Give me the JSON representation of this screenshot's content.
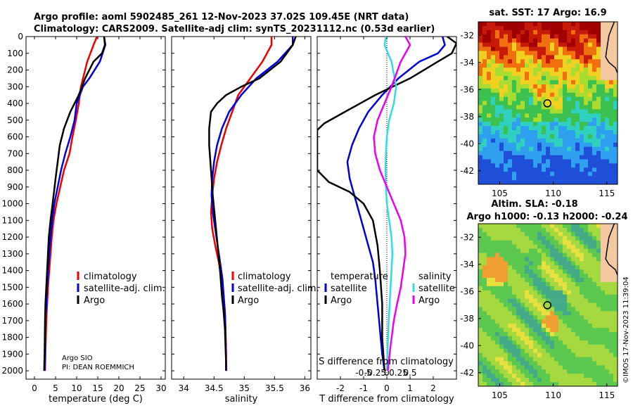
{
  "figure": {
    "title_line1": "Argo profile: aoml 5902485_261 12-Nov-2023 37.02S 109.45E (NRT data)",
    "title_line2": "Climatology: CARS2009. Satellite-adj clim: synTS_20231112.nc (0.53d earlier)",
    "pi_line1": "Argo SIO",
    "pi_line2": "PI: DEAN ROEMMICH",
    "watermark": "©IMOS 17-Nov-2023 11:39:04"
  },
  "colors": {
    "climatology": "#ee0000",
    "satellite": "#0000dd",
    "argo": "#000000",
    "salinity_sat": "#33dddd",
    "salinity_argo": "#ee00ee"
  },
  "chart_data": [
    {
      "type": "line",
      "name": "temperature-profile",
      "xlabel": "temperature (deg C)",
      "ylabel": "",
      "xlim": [
        -2,
        31
      ],
      "ylim": [
        2050,
        0
      ],
      "xticks": [
        0,
        5,
        10,
        15,
        20,
        25,
        30
      ],
      "yticks": [
        0,
        100,
        200,
        300,
        400,
        500,
        600,
        700,
        800,
        900,
        1000,
        1100,
        1200,
        1300,
        1400,
        1500,
        1600,
        1700,
        1800,
        1900,
        2000
      ],
      "legend": [
        "climatology",
        "satellite-adj. clim.",
        "Argo"
      ],
      "series": [
        {
          "name": "climatology",
          "x": [
            14.8,
            14,
            12.5,
            11.5,
            11,
            10.5,
            9.8,
            9,
            8.3,
            7,
            5.2,
            4.5,
            4.1,
            3.8,
            3.5,
            3.2,
            3,
            2.8,
            2.7,
            2.6,
            2.5
          ],
          "y": [
            0,
            50,
            150,
            250,
            300,
            400,
            500,
            600,
            700,
            800,
            1000,
            1100,
            1200,
            1300,
            1400,
            1500,
            1600,
            1700,
            1800,
            1900,
            2000
          ]
        },
        {
          "name": "satellite-adj. clim.",
          "x": [
            16.5,
            16.8,
            15.5,
            13,
            11.5,
            10,
            9.5,
            8.5,
            7.3,
            6.3,
            4.7,
            4.2,
            3.8,
            3.5,
            3.2,
            3,
            2.8,
            2.6,
            2.5,
            2.4
          ],
          "y": [
            0,
            50,
            150,
            250,
            300,
            400,
            500,
            600,
            700,
            800,
            1000,
            1100,
            1200,
            1300,
            1400,
            1500,
            1600,
            1700,
            1800,
            2000
          ]
        },
        {
          "name": "Argo",
          "x": [
            16.5,
            16.7,
            16,
            14,
            12,
            10.5,
            8.5,
            7,
            6,
            5.5,
            5,
            4.3,
            3.8,
            3.4,
            3.2,
            3,
            2.8,
            2.6,
            2.5,
            2.4,
            2.3
          ],
          "y": [
            0,
            50,
            100,
            150,
            250,
            350,
            450,
            550,
            650,
            750,
            850,
            1000,
            1100,
            1200,
            1300,
            1400,
            1500,
            1600,
            1700,
            1900,
            2000
          ]
        }
      ]
    },
    {
      "type": "line",
      "name": "salinity-profile",
      "xlabel": "salinity",
      "ylabel": "",
      "xlim": [
        33.8,
        36.1
      ],
      "ylim": [
        2050,
        0
      ],
      "xticks": [
        34,
        34.5,
        35,
        35.5,
        36
      ],
      "xticklabels": [
        "34",
        "34.5",
        "35",
        "35.5",
        "36"
      ],
      "legend": [
        "climatology",
        "satellite-adj. clim.",
        "Argo"
      ],
      "series": [
        {
          "name": "climatology",
          "x": [
            35.45,
            35.45,
            35.3,
            35.1,
            34.9,
            34.8,
            34.7,
            34.62,
            34.55,
            34.5,
            34.47,
            34.45,
            34.47,
            34.52,
            34.58,
            34.62,
            34.66,
            34.68,
            34.69,
            34.7,
            34.7
          ],
          "y": [
            0,
            50,
            150,
            250,
            350,
            450,
            550,
            650,
            750,
            850,
            950,
            1050,
            1150,
            1250,
            1350,
            1450,
            1550,
            1650,
            1750,
            1900,
            2000
          ]
        },
        {
          "name": "satellite-adj. clim.",
          "x": [
            35.8,
            35.8,
            35.55,
            35.2,
            34.95,
            34.75,
            34.63,
            34.55,
            34.5,
            34.47,
            34.46,
            34.48,
            34.52,
            34.56,
            34.6,
            34.64,
            34.66,
            34.68,
            34.69,
            34.7
          ],
          "y": [
            0,
            50,
            150,
            250,
            350,
            450,
            550,
            650,
            750,
            850,
            950,
            1050,
            1150,
            1250,
            1350,
            1450,
            1550,
            1650,
            1750,
            2000
          ]
        },
        {
          "name": "Argo",
          "x": [
            35.85,
            35.8,
            35.6,
            35.25,
            34.95,
            34.7,
            34.55,
            34.45,
            34.42,
            34.42,
            34.45,
            34.48,
            34.52,
            34.56,
            34.6,
            34.63,
            34.66,
            34.68,
            34.69,
            34.7,
            34.7
          ],
          "y": [
            0,
            50,
            150,
            250,
            300,
            350,
            400,
            450,
            550,
            650,
            800,
            950,
            1100,
            1250,
            1400,
            1550,
            1650,
            1750,
            1850,
            1950,
            2000
          ]
        }
      ]
    },
    {
      "type": "line",
      "name": "difference-profile",
      "xlabel": "T difference from climatology",
      "xlabel_top": "S difference from climatology",
      "xlim": [
        -3,
        3
      ],
      "ylim": [
        2050,
        0
      ],
      "xticks": [
        -2,
        -1,
        0,
        1,
        2
      ],
      "xticklabels": [
        "-2",
        "-1",
        "0",
        "1",
        "2"
      ],
      "sticks": [
        -0.5,
        -0.25,
        0,
        0.25,
        0.5
      ],
      "sticklabels": [
        "-0.5",
        "-0.25",
        "0",
        "0.25",
        "0.5"
      ],
      "legend_temperature_title": "temperature",
      "legend_salinity_title": "salinity",
      "legend": [
        "satellite",
        "Argo",
        "satellite",
        "Argo"
      ],
      "series": [
        {
          "name": "T satellite",
          "x": [
            2.4,
            2.5,
            2.2,
            1.4,
            0.5,
            -0.2,
            -0.8,
            -1.2,
            -1.5,
            -1.7,
            -1.6,
            -1.4,
            -1.2,
            -1,
            -0.8,
            -0.6,
            -0.5,
            -0.4,
            -0.3,
            -0.2,
            -0.1
          ],
          "y": [
            0,
            50,
            100,
            150,
            250,
            350,
            450,
            550,
            650,
            750,
            850,
            950,
            1050,
            1150,
            1250,
            1350,
            1450,
            1600,
            1750,
            1900,
            2000
          ]
        },
        {
          "name": "T Argo",
          "x": [
            2.6,
            3,
            2.8,
            2.2,
            1,
            -0.5,
            -1.8,
            -2.7,
            -3,
            -3,
            -2.5,
            -1.6,
            -1,
            -0.6,
            -0.4,
            -0.3,
            -0.2,
            -0.2,
            -0.1
          ],
          "y": [
            0,
            40,
            100,
            150,
            250,
            350,
            450,
            520,
            560,
            800,
            870,
            930,
            1000,
            1100,
            1250,
            1400,
            1600,
            1800,
            2000
          ]
        },
        {
          "name": "S satellite",
          "x": [
            -0.02,
            -0.05,
            0.1,
            0.2,
            0.15,
            0.05,
            0,
            -0.02,
            -0.03,
            -0.02,
            0,
            0.05,
            0.1,
            0.12,
            0.1,
            0.08,
            0.06,
            0.04,
            0.02,
            0
          ],
          "y": [
            0,
            50,
            150,
            300,
            400,
            500,
            600,
            700,
            800,
            900,
            1000,
            1100,
            1200,
            1300,
            1400,
            1500,
            1600,
            1700,
            1850,
            2000
          ]
        },
        {
          "name": "S Argo",
          "x": [
            0.4,
            0.5,
            0.3,
            0.1,
            -0.05,
            -0.2,
            -0.28,
            -0.25,
            -0.15,
            0,
            0.15,
            0.3,
            0.38,
            0.4,
            0.35,
            0.3,
            0.22,
            0.15,
            0.08,
            0.02
          ],
          "y": [
            0,
            50,
            150,
            300,
            400,
            500,
            600,
            700,
            800,
            900,
            1000,
            1100,
            1200,
            1300,
            1400,
            1500,
            1600,
            1700,
            1850,
            2000
          ]
        }
      ]
    },
    {
      "type": "heatmap",
      "name": "sst-map",
      "title": "sat. SST: 17 Argo: 16.9",
      "xlim": [
        103,
        116
      ],
      "ylim": [
        -43,
        -31
      ],
      "xticks": [
        105,
        110,
        115
      ],
      "yticks": [
        -32,
        -34,
        -36,
        -38,
        -40,
        -42
      ],
      "argo_lon": 109.45,
      "argo_lat": -37.02
    },
    {
      "type": "heatmap",
      "name": "sla-map",
      "title_line1": "Altim. SLA: -0.18",
      "title_line2": "Argo h1000: -0.13 h2000: -0.24",
      "xlim": [
        103,
        116
      ],
      "ylim": [
        -43,
        -31
      ],
      "xticks": [
        105,
        110,
        115
      ],
      "yticks": [
        -32,
        -34,
        -36,
        -38,
        -40,
        -42
      ],
      "argo_lon": 109.45,
      "argo_lat": -37.02
    }
  ]
}
